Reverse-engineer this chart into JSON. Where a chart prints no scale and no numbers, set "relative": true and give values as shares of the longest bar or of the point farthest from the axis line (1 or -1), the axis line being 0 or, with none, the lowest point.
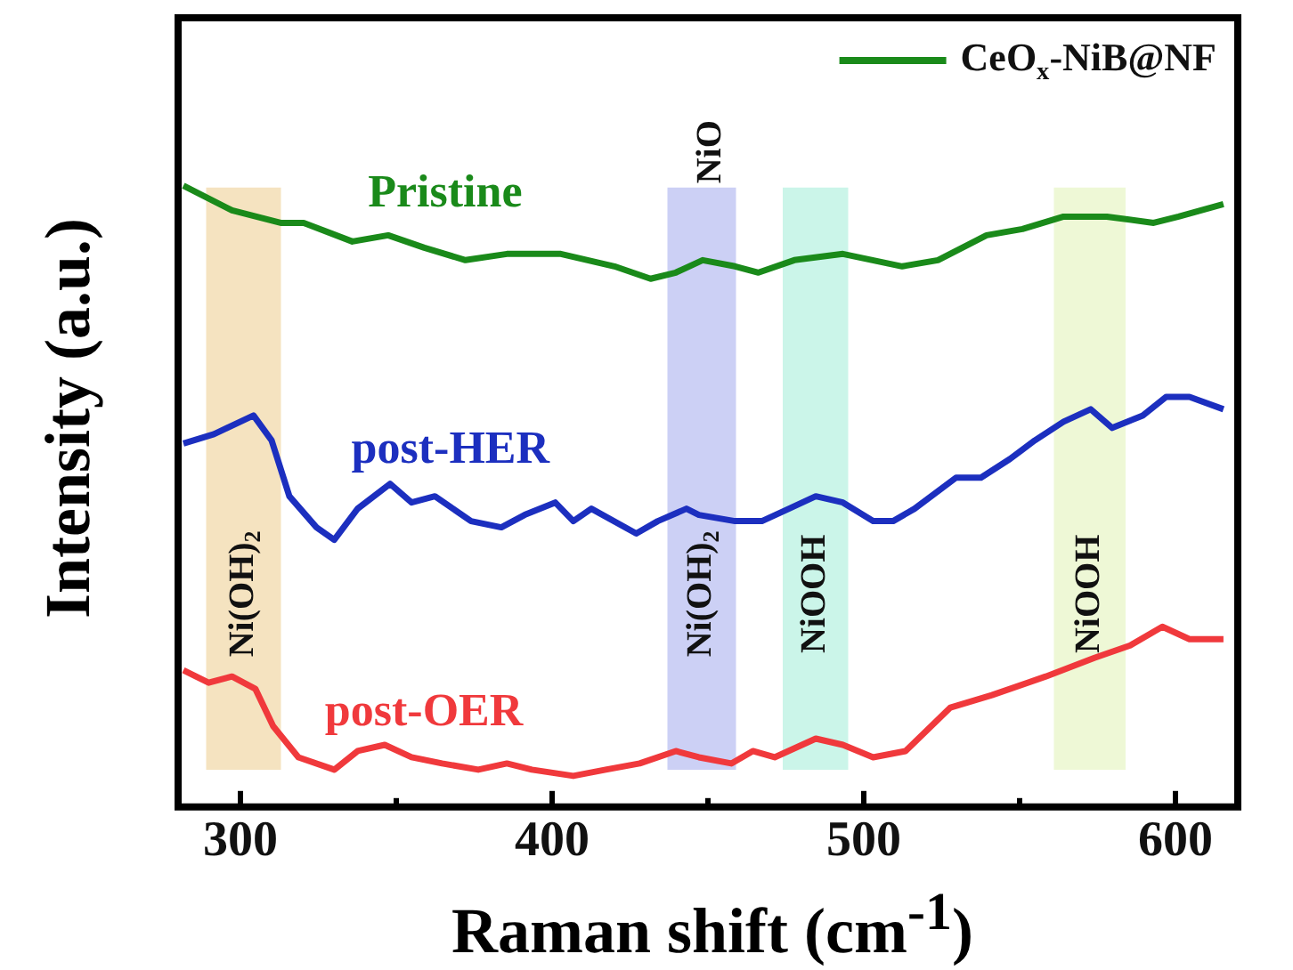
{
  "chart_data": {
    "type": "line",
    "xlabel": "Raman shift (cm$^{-1}$)",
    "ylabel": "Intensity (a.u.)",
    "relative": true,
    "marker": "none",
    "grid": false,
    "legend": "top right",
    "xlim": [
      280,
      620
    ],
    "xticks": [
      300,
      {
        "value": 350,
        "label": null
      },
      400,
      {
        "value": 450,
        "label": null
      },
      500,
      {
        "value": 550,
        "label": null
      },
      600
    ],
    "series": [
      {
        "name": "CeO$_{x}$-NiB@NF",
        "color": "#1a8a1a",
        "x": [
          281.7,
          297.3,
          312.9,
          320.3,
          335.9,
          347.4,
          359,
          372.2,
          385.5,
          402.8,
          420,
          431.6,
          439.7,
          448.3,
          458.7,
          466.2,
          477.7,
          493.3,
          512.3,
          523.8,
          539.4,
          550.9,
          564.1,
          578,
          593,
          601,
          615.4
        ],
        "values": [
          1.0,
          0.96,
          0.94,
          0.94,
          0.91,
          0.92,
          0.9,
          0.88,
          0.89,
          0.89,
          0.87,
          0.85,
          0.86,
          0.88,
          0.87,
          0.86,
          0.88,
          0.89,
          0.87,
          0.88,
          0.92,
          0.93,
          0.95,
          0.95,
          0.94,
          0.95,
          0.97
        ]
      },
      {
        "color": "#1c2fbf",
        "x": [
          281.7,
          291.5,
          304.2,
          310,
          315.7,
          324.4,
          330.1,
          337.6,
          348,
          354.9,
          362.4,
          368.2,
          374,
          383.7,
          391.2,
          401,
          406.8,
          412.6,
          427,
          433.9,
          443.1,
          447.1,
          458.7,
          467.3,
          476,
          484.6,
          493.3,
          503,
          509.4,
          516.3,
          529.6,
          537.6,
          546.9,
          554.9,
          564.1,
          572.8,
          579.7,
          589.5,
          597,
          604.5,
          615.4
        ],
        "values": [
          0.585,
          0.6,
          0.63,
          0.59,
          0.5,
          0.45,
          0.43,
          0.48,
          0.52,
          0.49,
          0.5,
          0.48,
          0.46,
          0.45,
          0.47,
          0.49,
          0.46,
          0.48,
          0.44,
          0.46,
          0.48,
          0.47,
          0.46,
          0.46,
          0.48,
          0.5,
          0.49,
          0.46,
          0.46,
          0.48,
          0.53,
          0.53,
          0.56,
          0.59,
          0.62,
          0.64,
          0.61,
          0.63,
          0.66,
          0.66,
          0.64
        ]
      },
      {
        "color": "#f0393c",
        "x": [
          281.7,
          289.8,
          297.3,
          304.8,
          310.5,
          318.6,
          330.1,
          337.6,
          346.3,
          354.9,
          364.7,
          376.3,
          385.5,
          393.5,
          406.8,
          417.2,
          428.1,
          439.7,
          447.1,
          457.5,
          464.4,
          471.4,
          484.6,
          493.3,
          503,
          513.4,
          527.8,
          541.1,
          558.4,
          574,
          585.5,
          595.8,
          604.5,
          615.4
        ],
        "values": [
          0.22,
          0.2,
          0.21,
          0.19,
          0.13,
          0.08,
          0.06,
          0.09,
          0.1,
          0.08,
          0.07,
          0.06,
          0.07,
          0.06,
          0.05,
          0.06,
          0.07,
          0.09,
          0.08,
          0.07,
          0.09,
          0.08,
          0.11,
          0.1,
          0.08,
          0.09,
          0.16,
          0.18,
          0.21,
          0.24,
          0.26,
          0.29,
          0.27,
          0.27
        ]
      }
    ],
    "bands": [
      {
        "axis": "x",
        "from": 289,
        "to": 313,
        "label": "Ni(OH)$_{2}$",
        "color": "#f5e3c0"
      },
      {
        "axis": "x",
        "from": 437,
        "to": 459,
        "label": "Ni(OH)$_{2}$",
        "color": "#ccd0f5"
      },
      {
        "axis": "x",
        "from": 474,
        "to": 495,
        "label": "NiOOH",
        "color": "#cbf5e9"
      },
      {
        "axis": "x",
        "from": 561,
        "to": 584,
        "label": "NiOOH",
        "color": "#eef8d6"
      }
    ],
    "annotations": [
      "Pristine",
      "post-HER",
      "post-OER",
      "NiO"
    ]
  }
}
